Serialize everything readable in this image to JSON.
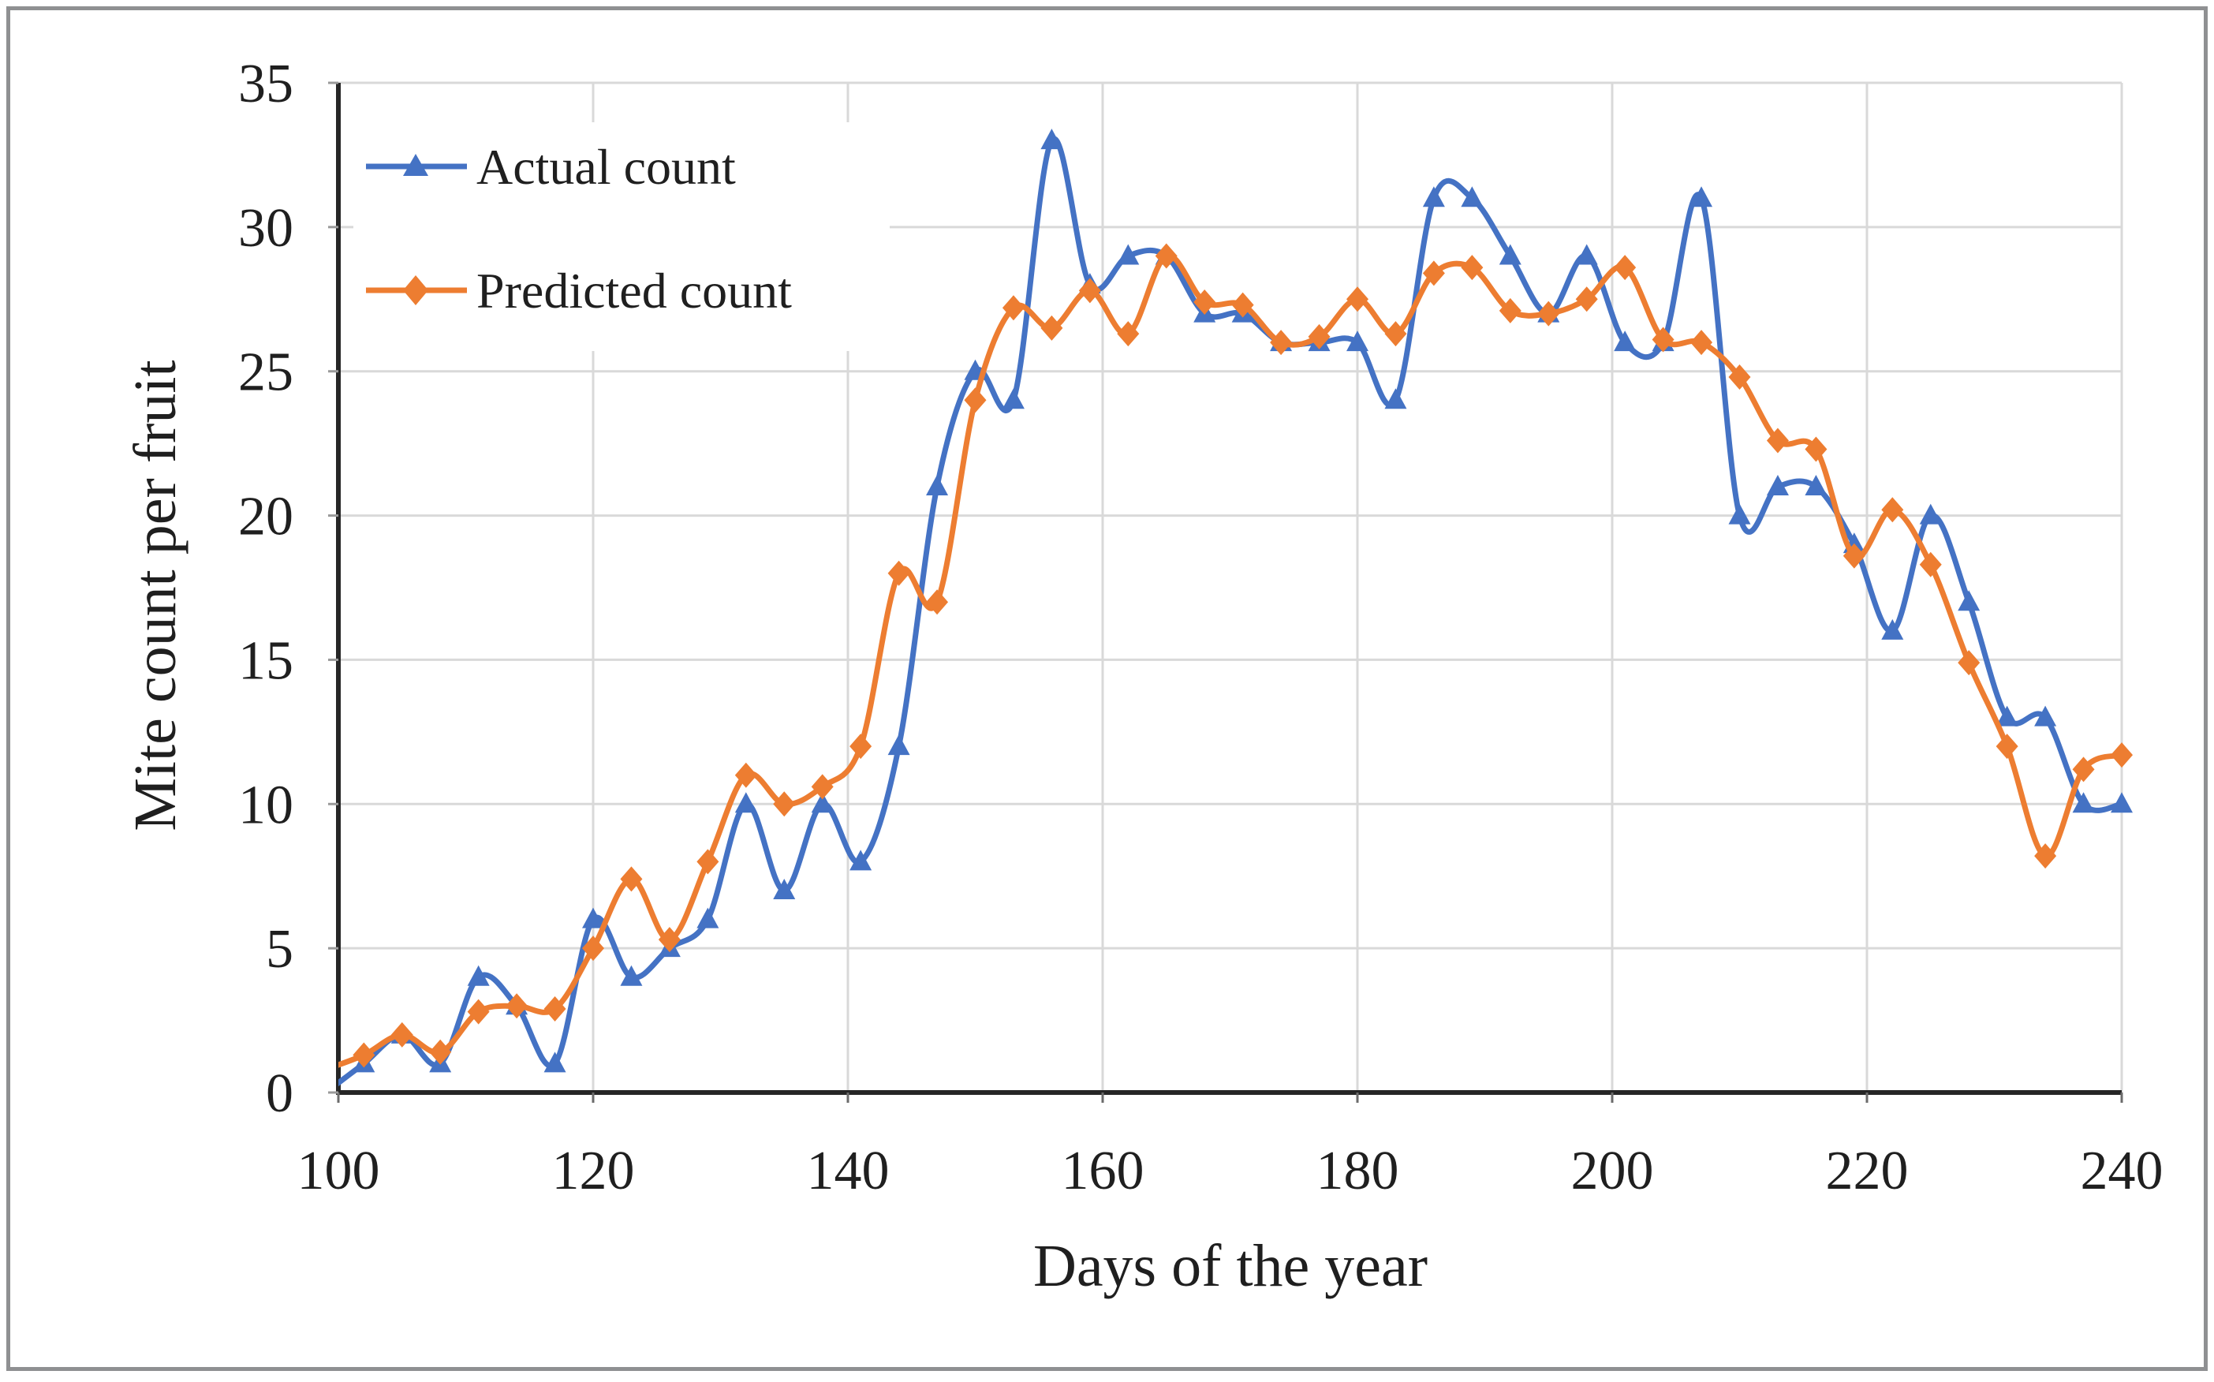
{
  "figure": {
    "border_color": "#8f9092",
    "background": "#ffffff"
  },
  "chart_data": {
    "type": "line",
    "title": "",
    "xlabel": "Days of the year",
    "ylabel": "Mite count per fruit",
    "xlim": [
      100,
      240
    ],
    "ylim": [
      0,
      35
    ],
    "x_ticks": [
      100,
      120,
      140,
      160,
      180,
      200,
      220,
      240
    ],
    "y_ticks": [
      0,
      5,
      10,
      15,
      20,
      25,
      30,
      35
    ],
    "grid": true,
    "grid_color": "#d9d9d9",
    "axis_color": "#262626",
    "legend_position": "top-left-inside",
    "x": [
      99,
      102,
      105,
      108,
      111,
      114,
      117,
      120,
      123,
      126,
      129,
      132,
      135,
      138,
      141,
      144,
      147,
      150,
      153,
      156,
      159,
      162,
      165,
      168,
      171,
      174,
      177,
      180,
      183,
      186,
      189,
      192,
      195,
      198,
      201,
      204,
      207,
      210,
      213,
      216,
      219,
      222,
      225,
      228,
      231,
      234,
      237,
      240
    ],
    "series": [
      {
        "name": "Actual count",
        "color": "#4472C4",
        "marker": "triangle",
        "values": [
          0,
          1,
          2,
          1,
          4,
          3,
          1,
          6,
          4,
          5,
          6,
          10,
          7,
          10,
          8,
          12,
          21,
          25,
          24,
          33,
          28,
          29,
          29,
          27,
          27,
          26,
          26,
          26,
          24,
          31,
          31,
          29,
          27,
          29,
          26,
          26,
          31,
          20,
          21,
          21,
          19,
          16,
          20,
          17,
          13,
          13,
          10,
          10
        ]
      },
      {
        "name": "Predicted count",
        "color": "#ED7D31",
        "marker": "diamond",
        "values": [
          0.8,
          1.3,
          2,
          1.4,
          2.8,
          3,
          2.9,
          5,
          7.4,
          5.3,
          8,
          11,
          10,
          10.6,
          12,
          18,
          17,
          24,
          27.2,
          26.5,
          27.8,
          26.3,
          29,
          27.4,
          27.3,
          26,
          26.2,
          27.5,
          26.3,
          28.4,
          28.6,
          27.1,
          27,
          27.5,
          28.6,
          26.1,
          26,
          24.8,
          22.6,
          22.3,
          18.6,
          20.2,
          18.3,
          14.9,
          12,
          8.2,
          11.2,
          11.7
        ]
      }
    ]
  }
}
